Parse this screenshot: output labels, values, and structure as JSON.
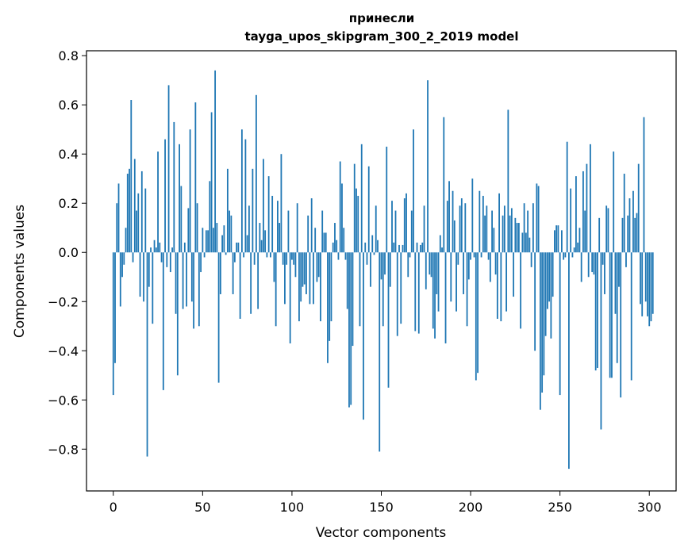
{
  "chart_data": {
    "type": "bar",
    "title_line1": "принесли",
    "title_line2": "tayga_upos_skipgram_300_2_2019 model",
    "xlabel": "Vector components",
    "ylabel": "Components values",
    "xlim": [
      -15,
      315
    ],
    "ylim": [
      -0.97,
      0.82
    ],
    "xticks": [
      0,
      50,
      100,
      150,
      200,
      250,
      300
    ],
    "xtick_labels": [
      "0",
      "50",
      "100",
      "150",
      "200",
      "250",
      "300"
    ],
    "yticks": [
      -0.8,
      -0.6,
      -0.4,
      -0.2,
      0.0,
      0.2,
      0.4,
      0.6,
      0.8
    ],
    "ytick_labels": [
      "−0.8",
      "−0.6",
      "−0.4",
      "−0.2",
      "0.0",
      "0.2",
      "0.4",
      "0.6",
      "0.8"
    ],
    "bar_color": "#1f77b4",
    "grid": false,
    "values": [
      -0.58,
      -0.45,
      0.2,
      0.28,
      -0.22,
      -0.1,
      -0.05,
      0.1,
      0.32,
      0.34,
      0.62,
      -0.04,
      0.38,
      0.17,
      0.24,
      -0.18,
      0.33,
      -0.2,
      0.26,
      -0.83,
      -0.14,
      0.02,
      -0.29,
      0.05,
      0.02,
      0.41,
      0.04,
      -0.04,
      -0.56,
      0.46,
      -0.06,
      0.68,
      -0.08,
      0.02,
      0.53,
      -0.25,
      -0.5,
      0.44,
      0.27,
      -0.23,
      0.04,
      -0.22,
      0.18,
      0.5,
      -0.2,
      -0.31,
      0.61,
      0.2,
      -0.3,
      -0.08,
      0.1,
      -0.02,
      0.09,
      0.09,
      0.29,
      0.57,
      0.1,
      0.74,
      0.12,
      -0.53,
      -0.17,
      0.07,
      0.11,
      -0.01,
      0.34,
      0.17,
      0.15,
      -0.17,
      -0.04,
      0.04,
      0.04,
      -0.27,
      0.5,
      -0.02,
      0.46,
      0.07,
      0.19,
      -0.25,
      0.34,
      -0.05,
      0.64,
      -0.23,
      0.12,
      0.05,
      0.38,
      0.09,
      -0.02,
      0.31,
      -0.02,
      0.23,
      -0.12,
      -0.3,
      0.21,
      0.12,
      0.4,
      -0.05,
      -0.21,
      -0.05,
      0.17,
      -0.37,
      -0.03,
      -0.05,
      -0.1,
      0.2,
      -0.28,
      -0.2,
      -0.14,
      -0.13,
      -0.17,
      0.15,
      -0.21,
      0.22,
      -0.21,
      0.1,
      -0.12,
      -0.1,
      -0.28,
      0.17,
      0.08,
      0.08,
      -0.45,
      -0.36,
      -0.28,
      0.04,
      0.12,
      0.05,
      -0.03,
      0.37,
      0.28,
      0.1,
      -0.03,
      -0.23,
      -0.63,
      -0.62,
      -0.38,
      0.36,
      0.26,
      0.23,
      -0.3,
      0.44,
      -0.68,
      0.04,
      -0.05,
      0.35,
      -0.14,
      0.07,
      -0.01,
      0.19,
      0.05,
      -0.81,
      -0.11,
      -0.3,
      -0.09,
      0.43,
      -0.55,
      -0.14,
      0.21,
      0.04,
      0.17,
      -0.34,
      0.03,
      -0.29,
      0.03,
      0.22,
      0.24,
      -0.1,
      -0.02,
      0.17,
      0.5,
      -0.32,
      0.04,
      -0.33,
      0.03,
      0.04,
      0.19,
      -0.15,
      0.7,
      -0.09,
      -0.1,
      -0.31,
      -0.35,
      -0.17,
      -0.24,
      0.07,
      0.02,
      0.55,
      -0.37,
      0.21,
      0.29,
      -0.2,
      0.25,
      0.13,
      -0.24,
      -0.05,
      0.19,
      0.22,
      -0.17,
      0.2,
      -0.3,
      -0.11,
      -0.03,
      0.3,
      -0.02,
      -0.52,
      -0.49,
      0.25,
      -0.02,
      0.23,
      0.15,
      0.19,
      -0.03,
      -0.12,
      0.17,
      0.1,
      -0.09,
      -0.27,
      0.24,
      -0.28,
      0.15,
      0.19,
      -0.24,
      0.58,
      0.15,
      0.18,
      -0.18,
      0.14,
      0.12,
      0.12,
      -0.31,
      0.08,
      0.2,
      0.08,
      0.17,
      0.06,
      -0.06,
      0.2,
      -0.4,
      0.28,
      0.27,
      -0.64,
      -0.57,
      -0.5,
      -0.34,
      -0.23,
      -0.2,
      -0.35,
      -0.18,
      0.09,
      0.11,
      0.11,
      -0.58,
      0.09,
      -0.03,
      -0.02,
      0.45,
      -0.88,
      0.26,
      -0.02,
      0.02,
      0.31,
      0.04,
      0.1,
      -0.12,
      0.33,
      0.17,
      0.36,
      -0.1,
      0.44,
      -0.08,
      -0.09,
      -0.48,
      -0.47,
      0.14,
      -0.72,
      -0.05,
      -0.17,
      0.19,
      0.18,
      -0.51,
      -0.51,
      0.41,
      -0.25,
      -0.45,
      -0.14,
      -0.59,
      0.14,
      0.32,
      -0.06,
      0.15,
      0.22,
      -0.52,
      0.25,
      0.14,
      0.16,
      0.36,
      -0.21,
      -0.26,
      0.55,
      -0.2,
      -0.26,
      -0.3,
      -0.28,
      -0.25
    ]
  }
}
